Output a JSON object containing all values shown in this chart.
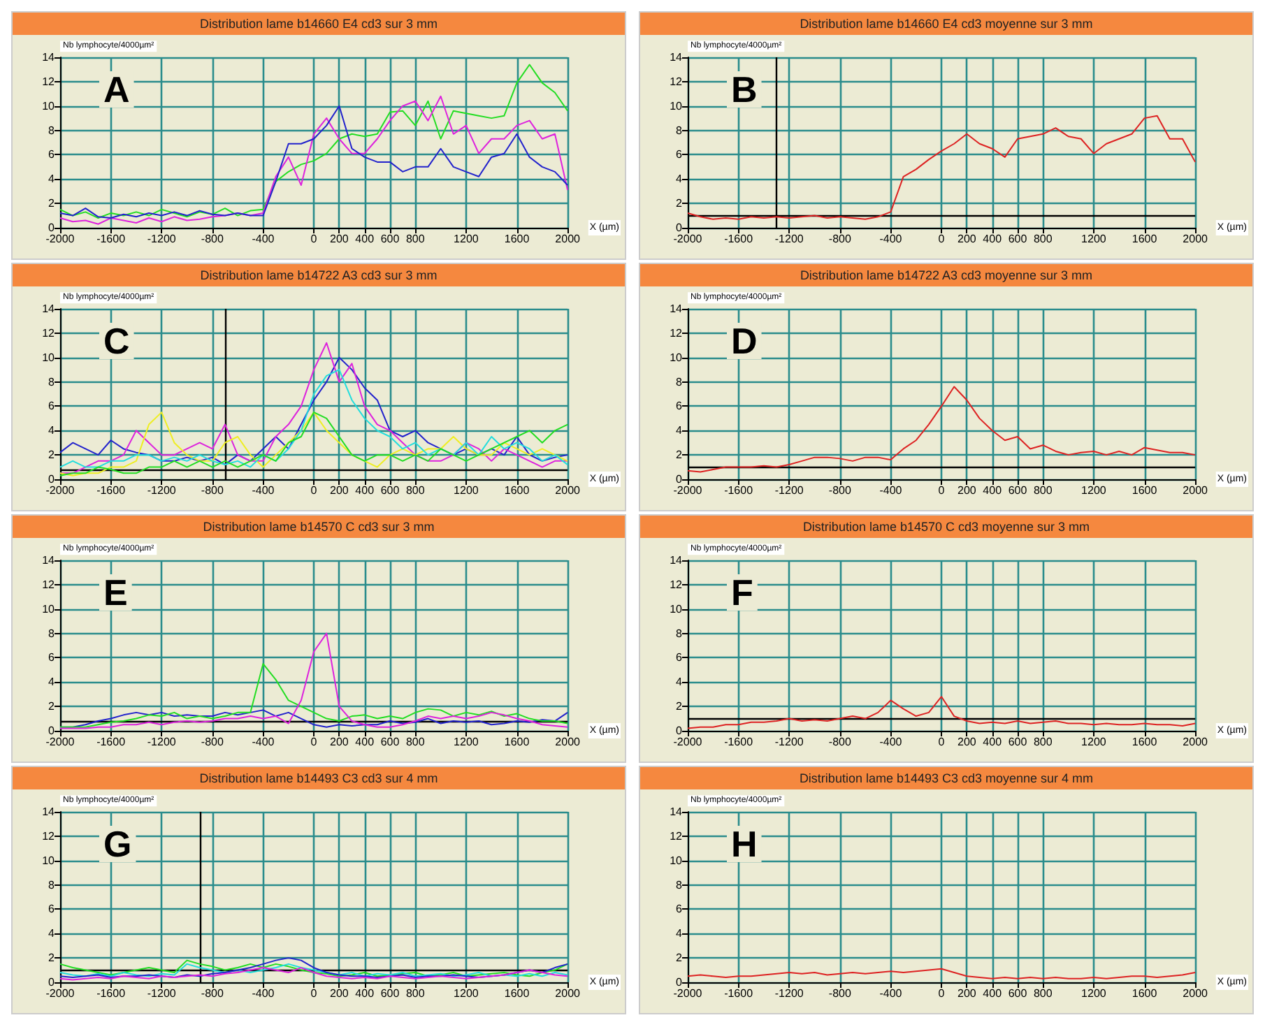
{
  "chart_data": [
    {
      "type": "line",
      "title": "Distribution lame b14660 E4 cd3 sur 3 mm",
      "ylabel": "Nb lymphocyte/4000µm²",
      "xlabel": "X (µm)",
      "annotations": [
        "A"
      ],
      "xlim": [
        -2000,
        2000
      ],
      "ylim": [
        0,
        14
      ],
      "xticks": [
        -2000,
        -1600,
        -1200,
        -800,
        -400,
        0,
        200,
        400,
        600,
        800,
        1200,
        1600,
        2000
      ],
      "yticks": [
        0,
        2,
        4,
        6,
        8,
        10,
        12,
        14
      ],
      "grid": true,
      "x": [
        -2000,
        -1900,
        -1800,
        -1700,
        -1600,
        -1500,
        -1400,
        -1300,
        -1200,
        -1100,
        -1000,
        -900,
        -800,
        -700,
        -600,
        -500,
        -400,
        -300,
        -200,
        -100,
        0,
        100,
        200,
        300,
        400,
        500,
        600,
        700,
        800,
        900,
        1000,
        1100,
        1200,
        1300,
        1400,
        1500,
        1600,
        1700,
        1800,
        1900,
        2000
      ],
      "series": [
        {
          "color": "#22dd22",
          "values": [
            1.5,
            1.0,
            1.3,
            0.8,
            1.2,
            1.0,
            1.3,
            1.0,
            1.5,
            1.2,
            0.9,
            1.3,
            1.1,
            1.6,
            1.0,
            1.4,
            1.5,
            3.8,
            4.6,
            5.2,
            5.5,
            6.1,
            7.3,
            7.7,
            7.5,
            7.7,
            9.5,
            9.6,
            8.4,
            10.4,
            7.3,
            9.6,
            9.4,
            9.2,
            9.0,
            9.2,
            11.9,
            13.4,
            11.9,
            11.1,
            9.6
          ]
        },
        {
          "color": "#dd22dd",
          "values": [
            0.8,
            0.5,
            0.6,
            0.3,
            0.8,
            0.6,
            0.4,
            0.8,
            0.5,
            0.9,
            0.6,
            0.7,
            0.9,
            1.0,
            1.2,
            1.0,
            1.2,
            4.2,
            5.8,
            3.5,
            7.7,
            9.0,
            7.3,
            6.1,
            6.1,
            7.3,
            8.8,
            10.0,
            10.4,
            8.8,
            10.8,
            7.7,
            8.4,
            6.1,
            7.3,
            7.3,
            8.4,
            8.8,
            7.3,
            7.7,
            3.1
          ]
        },
        {
          "color": "#2222cc",
          "values": [
            1.2,
            1.0,
            1.6,
            0.9,
            0.8,
            1.1,
            0.9,
            1.2,
            1.0,
            1.3,
            1.0,
            1.4,
            1.1,
            1.0,
            1.2,
            1.0,
            1.0,
            3.8,
            6.9,
            6.9,
            7.3,
            8.4,
            10.0,
            6.5,
            5.8,
            5.4,
            5.4,
            4.6,
            5.0,
            5.0,
            6.5,
            5.0,
            4.6,
            4.2,
            5.8,
            6.1,
            7.7,
            5.8,
            5.0,
            4.6,
            3.5
          ]
        }
      ]
    },
    {
      "type": "line",
      "title": "Distribution lame b14660 E4 cd3 moyenne sur 3 mm",
      "ylabel": "Nb lymphocyte/4000µm²",
      "xlabel": "X (µm)",
      "annotations": [
        "B"
      ],
      "xlim": [
        -2000,
        2000
      ],
      "ylim": [
        0,
        14
      ],
      "xticks": [
        -2000,
        -1600,
        -1200,
        -800,
        -400,
        0,
        200,
        400,
        600,
        800,
        1200,
        1600,
        2000
      ],
      "yticks": [
        0,
        2,
        4,
        6,
        8,
        10,
        12,
        14
      ],
      "grid": true,
      "ref_lines": [
        {
          "axis": "y",
          "value": 1,
          "color": "#000000"
        },
        {
          "axis": "x",
          "value": -1300,
          "color": "#000000"
        }
      ],
      "x": [
        -2000,
        -1900,
        -1800,
        -1700,
        -1600,
        -1500,
        -1400,
        -1300,
        -1200,
        -1100,
        -1000,
        -900,
        -800,
        -700,
        -600,
        -500,
        -400,
        -300,
        -200,
        -100,
        0,
        100,
        200,
        300,
        400,
        500,
        600,
        700,
        800,
        900,
        1000,
        1100,
        1200,
        1300,
        1400,
        1500,
        1600,
        1700,
        1800,
        1900,
        2000
      ],
      "series": [
        {
          "color": "#dd2222",
          "values": [
            1.2,
            0.9,
            0.7,
            0.8,
            0.7,
            0.9,
            0.8,
            0.9,
            0.8,
            0.9,
            1.0,
            0.8,
            0.9,
            0.8,
            0.7,
            0.9,
            1.3,
            4.2,
            4.8,
            5.6,
            6.3,
            6.9,
            7.7,
            6.9,
            6.5,
            5.8,
            7.3,
            7.5,
            7.7,
            8.2,
            7.5,
            7.3,
            6.1,
            6.9,
            7.3,
            7.7,
            9.0,
            9.2,
            7.3,
            7.3,
            5.4
          ]
        }
      ]
    },
    {
      "type": "line",
      "title": "Distribution lame b14722 A3 cd3 sur 3 mm",
      "ylabel": "Nb lymphocyte/4000µm²",
      "xlabel": "X (µm)",
      "annotations": [
        "C"
      ],
      "xlim": [
        -2000,
        2000
      ],
      "ylim": [
        0,
        14
      ],
      "xticks": [
        -2000,
        -1600,
        -1200,
        -800,
        -400,
        0,
        200,
        400,
        600,
        800,
        1200,
        1600,
        2000
      ],
      "yticks": [
        0,
        2,
        4,
        6,
        8,
        10,
        12,
        14
      ],
      "grid": true,
      "ref_lines": [
        {
          "axis": "y",
          "value": 0.8,
          "color": "#000000"
        },
        {
          "axis": "x",
          "value": -700,
          "color": "#000000"
        }
      ],
      "x": [
        -2000,
        -1900,
        -1800,
        -1700,
        -1600,
        -1500,
        -1400,
        -1300,
        -1200,
        -1100,
        -1000,
        -900,
        -800,
        -700,
        -600,
        -500,
        -400,
        -300,
        -200,
        -100,
        0,
        100,
        200,
        300,
        400,
        500,
        600,
        700,
        800,
        900,
        1000,
        1100,
        1200,
        1300,
        1400,
        1500,
        1600,
        1700,
        1800,
        1900,
        2000
      ],
      "series": [
        {
          "color": "#2222cc",
          "values": [
            2.2,
            3.0,
            2.5,
            2.0,
            3.2,
            2.5,
            2.2,
            2.0,
            1.5,
            1.5,
            1.8,
            1.5,
            1.8,
            1.2,
            2.0,
            1.5,
            2.5,
            3.5,
            2.5,
            4.5,
            6.5,
            8.0,
            10.0,
            9.0,
            7.5,
            6.5,
            4.0,
            3.5,
            4.0,
            3.0,
            2.5,
            2.0,
            2.5,
            2.0,
            2.5,
            2.0,
            3.5,
            2.0,
            1.5,
            1.8,
            2.0
          ]
        },
        {
          "color": "#dd22dd",
          "values": [
            0.5,
            0.5,
            1.0,
            1.5,
            1.5,
            2.0,
            4.0,
            3.0,
            2.0,
            2.0,
            2.5,
            3.0,
            2.5,
            4.5,
            2.0,
            1.5,
            1.5,
            3.5,
            4.5,
            6.0,
            9.0,
            11.2,
            8.0,
            9.5,
            6.0,
            4.5,
            4.0,
            3.0,
            2.0,
            1.5,
            1.5,
            2.0,
            3.0,
            2.5,
            1.5,
            2.5,
            2.0,
            1.5,
            1.0,
            1.5,
            1.5
          ]
        },
        {
          "color": "#eeee22",
          "values": [
            0.5,
            0.3,
            0.5,
            0.5,
            1.0,
            1.0,
            1.5,
            4.5,
            5.5,
            3.0,
            2.0,
            1.5,
            1.5,
            3.0,
            3.5,
            2.0,
            1.0,
            2.0,
            3.0,
            4.0,
            5.5,
            4.0,
            3.0,
            2.0,
            1.5,
            1.0,
            2.0,
            2.5,
            2.0,
            2.5,
            2.5,
            3.5,
            2.5,
            2.0,
            2.0,
            3.0,
            2.5,
            2.0,
            2.5,
            2.0,
            1.5
          ]
        },
        {
          "color": "#22dddd",
          "values": [
            1.0,
            1.5,
            1.0,
            1.0,
            1.5,
            1.5,
            2.0,
            2.0,
            1.5,
            1.8,
            1.5,
            2.0,
            1.5,
            1.2,
            1.5,
            1.0,
            2.0,
            1.5,
            2.5,
            4.0,
            7.0,
            8.5,
            9.0,
            6.5,
            5.0,
            4.0,
            3.5,
            2.5,
            3.0,
            2.0,
            2.5,
            2.0,
            3.0,
            2.0,
            3.5,
            2.5,
            3.0,
            2.5,
            1.5,
            2.0,
            1.2
          ]
        },
        {
          "color": "#22dd22",
          "values": [
            0.3,
            0.5,
            0.5,
            1.0,
            0.8,
            0.5,
            0.5,
            1.0,
            1.0,
            1.5,
            1.0,
            1.5,
            1.0,
            1.5,
            1.0,
            1.5,
            2.0,
            1.5,
            3.0,
            3.5,
            5.5,
            5.0,
            3.5,
            2.0,
            1.5,
            2.0,
            2.0,
            1.5,
            2.0,
            1.5,
            2.5,
            2.0,
            1.5,
            2.0,
            2.5,
            3.0,
            3.5,
            4.0,
            3.0,
            4.0,
            4.5
          ]
        }
      ]
    },
    {
      "type": "line",
      "title": "Distribution lame b14722 A3 cd3 moyenne sur 3 mm",
      "ylabel": "Nb lymphocyte/4000µm²",
      "xlabel": "X (µm)",
      "annotations": [
        "D"
      ],
      "xlim": [
        -2000,
        2000
      ],
      "ylim": [
        0,
        14
      ],
      "xticks": [
        -2000,
        -1600,
        -1200,
        -800,
        -400,
        0,
        200,
        400,
        600,
        800,
        1200,
        1600,
        2000
      ],
      "yticks": [
        0,
        2,
        4,
        6,
        8,
        10,
        12,
        14
      ],
      "grid": true,
      "ref_lines": [
        {
          "axis": "y",
          "value": 1,
          "color": "#000000"
        }
      ],
      "x": [
        -2000,
        -1900,
        -1800,
        -1700,
        -1600,
        -1500,
        -1400,
        -1300,
        -1200,
        -1100,
        -1000,
        -900,
        -800,
        -700,
        -600,
        -500,
        -400,
        -300,
        -200,
        -100,
        0,
        100,
        200,
        300,
        400,
        500,
        600,
        700,
        800,
        900,
        1000,
        1100,
        1200,
        1300,
        1400,
        1500,
        1600,
        1700,
        1800,
        1900,
        2000
      ],
      "series": [
        {
          "color": "#dd2222",
          "values": [
            0.7,
            0.6,
            0.8,
            1.0,
            1.0,
            1.0,
            1.1,
            1.0,
            1.2,
            1.5,
            1.8,
            1.8,
            1.7,
            1.5,
            1.8,
            1.8,
            1.6,
            2.5,
            3.2,
            4.5,
            6.0,
            7.6,
            6.5,
            5.0,
            4.0,
            3.2,
            3.5,
            2.5,
            2.8,
            2.3,
            2.0,
            2.2,
            2.3,
            2.0,
            2.3,
            2.0,
            2.6,
            2.4,
            2.2,
            2.2,
            2.0
          ]
        }
      ]
    },
    {
      "type": "line",
      "title": "Distribution lame b14570 C cd3 sur 3 mm",
      "ylabel": "Nb lymphocyte/4000µm²",
      "xlabel": "X (µm)",
      "annotations": [
        "E"
      ],
      "xlim": [
        -2000,
        2000
      ],
      "ylim": [
        0,
        14
      ],
      "xticks": [
        -2000,
        -1600,
        -1200,
        -800,
        -400,
        0,
        200,
        400,
        600,
        800,
        1200,
        1600,
        2000
      ],
      "yticks": [
        0,
        2,
        4,
        6,
        8,
        10,
        12,
        14
      ],
      "grid": true,
      "ref_lines": [
        {
          "axis": "y",
          "value": 0.8,
          "color": "#000000"
        }
      ],
      "x": [
        -2000,
        -1900,
        -1800,
        -1700,
        -1600,
        -1500,
        -1400,
        -1300,
        -1200,
        -1100,
        -1000,
        -900,
        -800,
        -700,
        -600,
        -500,
        -400,
        -300,
        -200,
        -100,
        0,
        100,
        200,
        300,
        400,
        500,
        600,
        700,
        800,
        900,
        1000,
        1100,
        1200,
        1300,
        1400,
        1500,
        1600,
        1700,
        1800,
        1900,
        2000
      ],
      "series": [
        {
          "color": "#2222cc",
          "values": [
            0.3,
            0.3,
            0.5,
            0.8,
            1.0,
            1.3,
            1.5,
            1.3,
            1.5,
            1.2,
            1.3,
            1.2,
            1.2,
            1.5,
            1.3,
            1.5,
            1.7,
            1.2,
            1.5,
            1.0,
            0.5,
            0.3,
            0.5,
            0.4,
            0.5,
            0.5,
            0.8,
            0.6,
            0.7,
            1.0,
            0.6,
            0.8,
            0.7,
            0.8,
            0.5,
            0.6,
            0.8,
            0.7,
            0.9,
            0.8,
            1.5
          ]
        },
        {
          "color": "#22dd22",
          "values": [
            0.3,
            0.3,
            0.3,
            0.5,
            0.7,
            0.8,
            1.0,
            1.3,
            1.2,
            1.5,
            1.0,
            1.2,
            1.0,
            1.2,
            1.5,
            1.5,
            5.5,
            4.2,
            2.5,
            2.0,
            1.5,
            1.0,
            0.8,
            1.2,
            1.3,
            1.0,
            1.2,
            1.0,
            1.5,
            1.8,
            1.7,
            1.2,
            1.5,
            1.3,
            1.6,
            1.2,
            1.4,
            1.0,
            0.8,
            0.8,
            0.6
          ]
        },
        {
          "color": "#dd22dd",
          "values": [
            0.2,
            0.2,
            0.2,
            0.3,
            0.3,
            0.5,
            0.5,
            0.7,
            0.5,
            0.7,
            0.8,
            0.7,
            0.8,
            1.0,
            1.0,
            1.2,
            1.0,
            1.2,
            0.6,
            2.5,
            6.5,
            8.0,
            2.0,
            0.8,
            0.5,
            0.3,
            0.3,
            0.5,
            0.8,
            1.2,
            1.0,
            1.2,
            1.0,
            1.2,
            1.5,
            1.3,
            1.0,
            0.8,
            0.5,
            0.4,
            0.3
          ]
        }
      ]
    },
    {
      "type": "line",
      "title": "Distribution lame b14570 C cd3 moyenne sur 3 mm",
      "ylabel": "Nb lymphocyte/4000µm²",
      "xlabel": "X (µm)",
      "annotations": [
        "F"
      ],
      "xlim": [
        -2000,
        2000
      ],
      "ylim": [
        0,
        14
      ],
      "xticks": [
        -2000,
        -1600,
        -1200,
        -800,
        -400,
        0,
        200,
        400,
        600,
        800,
        1200,
        1600,
        2000
      ],
      "yticks": [
        0,
        2,
        4,
        6,
        8,
        10,
        12,
        14
      ],
      "grid": true,
      "ref_lines": [
        {
          "axis": "y",
          "value": 1,
          "color": "#000000"
        }
      ],
      "x": [
        -2000,
        -1900,
        -1800,
        -1700,
        -1600,
        -1500,
        -1400,
        -1300,
        -1200,
        -1100,
        -1000,
        -900,
        -800,
        -700,
        -600,
        -500,
        -400,
        -300,
        -200,
        -100,
        0,
        100,
        200,
        300,
        400,
        500,
        600,
        700,
        800,
        900,
        1000,
        1100,
        1200,
        1300,
        1400,
        1500,
        1600,
        1700,
        1800,
        1900,
        2000
      ],
      "series": [
        {
          "color": "#dd2222",
          "values": [
            0.2,
            0.3,
            0.3,
            0.5,
            0.5,
            0.7,
            0.7,
            0.8,
            1.0,
            0.8,
            0.9,
            0.8,
            1.0,
            1.2,
            1.0,
            1.5,
            2.5,
            1.8,
            1.2,
            1.5,
            2.8,
            1.2,
            0.8,
            0.6,
            0.7,
            0.6,
            0.8,
            0.6,
            0.7,
            0.8,
            0.6,
            0.6,
            0.5,
            0.6,
            0.5,
            0.5,
            0.6,
            0.5,
            0.5,
            0.4,
            0.6
          ]
        }
      ]
    },
    {
      "type": "line",
      "title": "Distribution lame b14493 C3 cd3 sur 4 mm",
      "ylabel": "Nb lymphocyte/4000µm²",
      "xlabel": "X (µm)",
      "annotations": [
        "G"
      ],
      "xlim": [
        -2000,
        2000
      ],
      "ylim": [
        0,
        14
      ],
      "xticks": [
        -2000,
        -1600,
        -1200,
        -800,
        -400,
        0,
        200,
        400,
        600,
        800,
        1200,
        1600,
        2000
      ],
      "yticks": [
        0,
        2,
        4,
        6,
        8,
        10,
        12,
        14
      ],
      "grid": true,
      "ref_lines": [
        {
          "axis": "y",
          "value": 1,
          "color": "#000000"
        },
        {
          "axis": "x",
          "value": -900,
          "color": "#000000"
        }
      ],
      "x": [
        -2000,
        -1900,
        -1800,
        -1700,
        -1600,
        -1500,
        -1400,
        -1300,
        -1200,
        -1100,
        -1000,
        -900,
        -800,
        -700,
        -600,
        -500,
        -400,
        -300,
        -200,
        -100,
        0,
        100,
        200,
        300,
        400,
        500,
        600,
        700,
        800,
        900,
        1000,
        1100,
        1200,
        1300,
        1400,
        1500,
        1600,
        1700,
        1800,
        1900,
        2000
      ],
      "series": [
        {
          "color": "#22dd22",
          "values": [
            1.5,
            1.2,
            1.0,
            0.8,
            0.6,
            0.8,
            1.0,
            1.2,
            1.0,
            0.8,
            1.8,
            1.5,
            1.3,
            1.0,
            1.2,
            1.5,
            1.2,
            1.5,
            1.3,
            1.0,
            0.8,
            0.7,
            0.5,
            0.6,
            0.8,
            0.5,
            0.6,
            0.7,
            0.8,
            0.5,
            0.6,
            0.8,
            0.5,
            0.6,
            0.7,
            0.8,
            0.6,
            0.5,
            0.8,
            1.0,
            1.5
          ]
        },
        {
          "color": "#22dddd",
          "values": [
            0.8,
            0.6,
            0.5,
            0.7,
            0.5,
            0.8,
            0.6,
            0.5,
            0.7,
            0.6,
            1.5,
            1.2,
            1.0,
            0.8,
            1.0,
            0.8,
            1.0,
            1.2,
            1.5,
            1.2,
            1.0,
            0.8,
            0.6,
            0.8,
            0.5,
            0.7,
            0.6,
            0.8,
            0.5,
            0.6,
            0.7,
            0.5,
            0.6,
            0.8,
            0.5,
            0.6,
            0.5,
            0.7,
            0.5,
            0.8,
            0.6
          ]
        },
        {
          "color": "#2222cc",
          "values": [
            0.5,
            0.4,
            0.5,
            0.6,
            0.4,
            0.5,
            0.5,
            0.6,
            0.5,
            0.4,
            0.6,
            0.5,
            0.7,
            0.8,
            1.0,
            1.2,
            1.5,
            1.8,
            2.0,
            1.8,
            1.2,
            0.8,
            0.6,
            0.5,
            0.5,
            0.4,
            0.5,
            0.6,
            0.4,
            0.5,
            0.5,
            0.6,
            0.5,
            0.4,
            0.5,
            0.6,
            0.8,
            1.0,
            0.8,
            1.2,
            1.5
          ]
        },
        {
          "color": "#dd22dd",
          "values": [
            0.3,
            0.2,
            0.3,
            0.4,
            0.3,
            0.5,
            0.4,
            0.3,
            0.5,
            0.4,
            0.5,
            0.6,
            0.5,
            0.7,
            0.8,
            1.0,
            1.2,
            1.0,
            0.8,
            1.2,
            0.8,
            0.5,
            0.4,
            0.3,
            0.4,
            0.3,
            0.5,
            0.4,
            0.3,
            0.4,
            0.5,
            0.4,
            0.3,
            0.4,
            0.5,
            0.6,
            0.8,
            1.0,
            0.8,
            0.6,
            0.5
          ]
        }
      ]
    },
    {
      "type": "line",
      "title": "Distribution lame b14493 C3 cd3 moyenne sur 4 mm",
      "ylabel": "Nb lymphocyte/4000µm²",
      "xlabel": "X (µm)",
      "annotations": [
        "H"
      ],
      "xlim": [
        -2000,
        2000
      ],
      "ylim": [
        0,
        14
      ],
      "xticks": [
        -2000,
        -1600,
        -1200,
        -800,
        -400,
        0,
        200,
        400,
        600,
        800,
        1200,
        1600,
        2000
      ],
      "yticks": [
        0,
        2,
        4,
        6,
        8,
        10,
        12,
        14
      ],
      "grid": true,
      "x": [
        -2000,
        -1900,
        -1800,
        -1700,
        -1600,
        -1500,
        -1400,
        -1300,
        -1200,
        -1100,
        -1000,
        -900,
        -800,
        -700,
        -600,
        -500,
        -400,
        -300,
        -200,
        -100,
        0,
        100,
        200,
        300,
        400,
        500,
        600,
        700,
        800,
        900,
        1000,
        1100,
        1200,
        1300,
        1400,
        1500,
        1600,
        1700,
        1800,
        1900,
        2000
      ],
      "series": [
        {
          "color": "#dd2222",
          "values": [
            0.5,
            0.6,
            0.5,
            0.4,
            0.5,
            0.5,
            0.6,
            0.7,
            0.8,
            0.7,
            0.8,
            0.6,
            0.7,
            0.8,
            0.7,
            0.8,
            0.9,
            0.8,
            0.9,
            1.0,
            1.1,
            0.8,
            0.5,
            0.4,
            0.3,
            0.4,
            0.3,
            0.4,
            0.3,
            0.4,
            0.3,
            0.3,
            0.4,
            0.3,
            0.4,
            0.5,
            0.5,
            0.4,
            0.5,
            0.6,
            0.8
          ]
        }
      ]
    }
  ]
}
